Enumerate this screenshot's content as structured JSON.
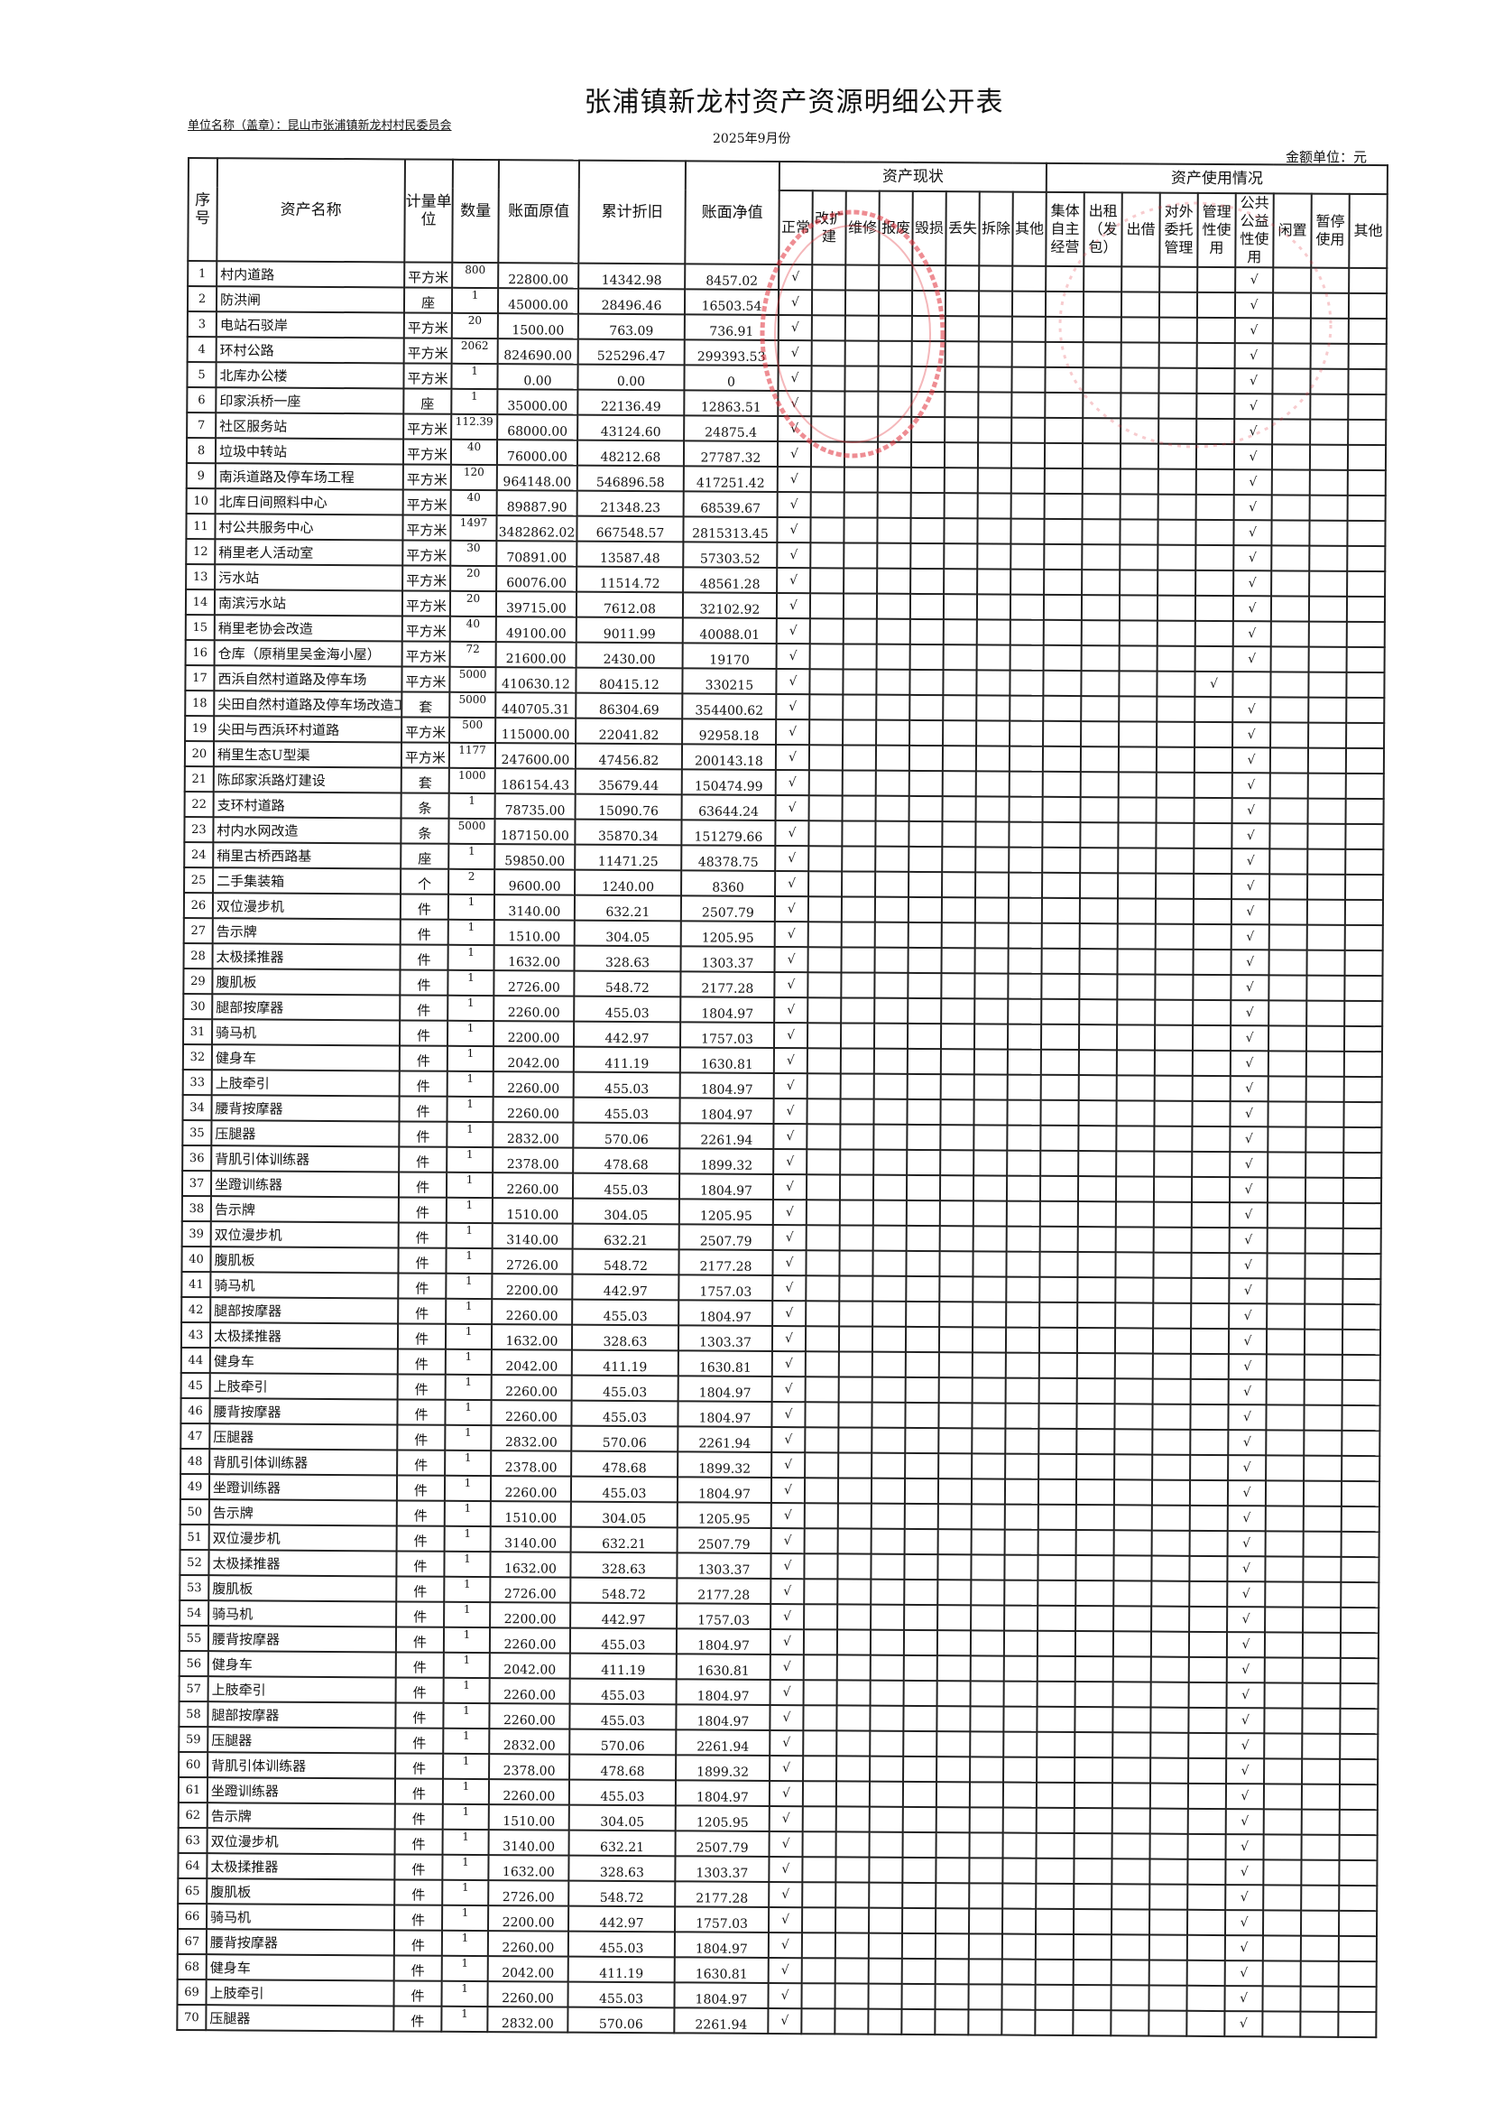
{
  "title": "张浦镇新龙村资产资源明细公开表",
  "unit_name": "单位名称（盖章）：昆山市张浦镇新龙村村民委员会",
  "period": "2025年9月份",
  "amount_unit": "金额单位：元",
  "headers": {
    "no": "序号",
    "name": "资产名称",
    "unit": "计量单位",
    "qty": "数量",
    "original": "账面原值",
    "depreciation": "累计折旧",
    "net": "账面净值",
    "status_group": "资产现状",
    "usage_group": "资产使用情况",
    "status_cols": [
      "正常",
      "改扩建",
      "维修",
      "报废",
      "毁损",
      "丢失",
      "拆除",
      "其他"
    ],
    "usage_cols": [
      "集体自主经营",
      "出租（发包）",
      "出借",
      "对外委托管理",
      "管理性使用",
      "公共公益性使用",
      "闲置",
      "暂停使用",
      "其他"
    ]
  },
  "check_mark": "√",
  "stamp_color": "#e0303a",
  "rows": [
    [
      "1",
      "村内道路",
      "平方米",
      "800",
      "22800.00",
      "14342.98",
      "8457.02",
      "正常",
      "公共公益性使用"
    ],
    [
      "2",
      "防洪闸",
      "座",
      "1",
      "45000.00",
      "28496.46",
      "16503.54",
      "正常",
      "公共公益性使用"
    ],
    [
      "3",
      "电站石驳岸",
      "平方米",
      "20",
      "1500.00",
      "763.09",
      "736.91",
      "正常",
      "公共公益性使用"
    ],
    [
      "4",
      "环村公路",
      "平方米",
      "2062",
      "824690.00",
      "525296.47",
      "299393.53",
      "正常",
      "公共公益性使用"
    ],
    [
      "5",
      "北库办公楼",
      "平方米",
      "1",
      "0.00",
      "0.00",
      "0",
      "正常",
      "公共公益性使用"
    ],
    [
      "6",
      "印家浜桥一座",
      "座",
      "1",
      "35000.00",
      "22136.49",
      "12863.51",
      "正常",
      "公共公益性使用"
    ],
    [
      "7",
      "社区服务站",
      "平方米",
      "112.39",
      "68000.00",
      "43124.60",
      "24875.4",
      "正常",
      "公共公益性使用"
    ],
    [
      "8",
      "垃圾中转站",
      "平方米",
      "40",
      "76000.00",
      "48212.68",
      "27787.32",
      "正常",
      "公共公益性使用"
    ],
    [
      "9",
      "南浜道路及停车场工程",
      "平方米",
      "120",
      "964148.00",
      "546896.58",
      "417251.42",
      "正常",
      "公共公益性使用"
    ],
    [
      "10",
      "北库日间照料中心",
      "平方米",
      "40",
      "89887.90",
      "21348.23",
      "68539.67",
      "正常",
      "公共公益性使用"
    ],
    [
      "11",
      "村公共服务中心",
      "平方米",
      "1497",
      "3482862.02",
      "667548.57",
      "2815313.45",
      "正常",
      "公共公益性使用"
    ],
    [
      "12",
      "稍里老人活动室",
      "平方米",
      "30",
      "70891.00",
      "13587.48",
      "57303.52",
      "正常",
      "公共公益性使用"
    ],
    [
      "13",
      "污水站",
      "平方米",
      "20",
      "60076.00",
      "11514.72",
      "48561.28",
      "正常",
      "公共公益性使用"
    ],
    [
      "14",
      "南滨污水站",
      "平方米",
      "20",
      "39715.00",
      "7612.08",
      "32102.92",
      "正常",
      "公共公益性使用"
    ],
    [
      "15",
      "稍里老协会改造",
      "平方米",
      "40",
      "49100.00",
      "9011.99",
      "40088.01",
      "正常",
      "公共公益性使用"
    ],
    [
      "16",
      "仓库（原稍里吴金海小屋）",
      "平方米",
      "72",
      "21600.00",
      "2430.00",
      "19170",
      "正常",
      "公共公益性使用"
    ],
    [
      "17",
      "西浜自然村道路及停车场",
      "平方米",
      "5000",
      "410630.12",
      "80415.12",
      "330215",
      "正常",
      "管理性使用"
    ],
    [
      "18",
      "尖田自然村道路及停车场改造工",
      "套",
      "5000",
      "440705.31",
      "86304.69",
      "354400.62",
      "正常",
      "公共公益性使用"
    ],
    [
      "19",
      "尖田与西浜环村道路",
      "平方米",
      "500",
      "115000.00",
      "22041.82",
      "92958.18",
      "正常",
      "公共公益性使用"
    ],
    [
      "20",
      "稍里生态U型渠",
      "平方米",
      "1177",
      "247600.00",
      "47456.82",
      "200143.18",
      "正常",
      "公共公益性使用"
    ],
    [
      "21",
      "陈邱家浜路灯建设",
      "套",
      "1000",
      "186154.43",
      "35679.44",
      "150474.99",
      "正常",
      "公共公益性使用"
    ],
    [
      "22",
      "支环村道路",
      "条",
      "1",
      "78735.00",
      "15090.76",
      "63644.24",
      "正常",
      "公共公益性使用"
    ],
    [
      "23",
      "村内水网改造",
      "条",
      "5000",
      "187150.00",
      "35870.34",
      "151279.66",
      "正常",
      "公共公益性使用"
    ],
    [
      "24",
      "稍里古桥西路基",
      "座",
      "1",
      "59850.00",
      "11471.25",
      "48378.75",
      "正常",
      "公共公益性使用"
    ],
    [
      "25",
      "二手集装箱",
      "个",
      "2",
      "9600.00",
      "1240.00",
      "8360",
      "正常",
      "公共公益性使用"
    ],
    [
      "26",
      "双位漫步机",
      "件",
      "1",
      "3140.00",
      "632.21",
      "2507.79",
      "正常",
      "公共公益性使用"
    ],
    [
      "27",
      "告示牌",
      "件",
      "1",
      "1510.00",
      "304.05",
      "1205.95",
      "正常",
      "公共公益性使用"
    ],
    [
      "28",
      "太极揉推器",
      "件",
      "1",
      "1632.00",
      "328.63",
      "1303.37",
      "正常",
      "公共公益性使用"
    ],
    [
      "29",
      "腹肌板",
      "件",
      "1",
      "2726.00",
      "548.72",
      "2177.28",
      "正常",
      "公共公益性使用"
    ],
    [
      "30",
      "腿部按摩器",
      "件",
      "1",
      "2260.00",
      "455.03",
      "1804.97",
      "正常",
      "公共公益性使用"
    ],
    [
      "31",
      "骑马机",
      "件",
      "1",
      "2200.00",
      "442.97",
      "1757.03",
      "正常",
      "公共公益性使用"
    ],
    [
      "32",
      "健身车",
      "件",
      "1",
      "2042.00",
      "411.19",
      "1630.81",
      "正常",
      "公共公益性使用"
    ],
    [
      "33",
      "上肢牵引",
      "件",
      "1",
      "2260.00",
      "455.03",
      "1804.97",
      "正常",
      "公共公益性使用"
    ],
    [
      "34",
      "腰背按摩器",
      "件",
      "1",
      "2260.00",
      "455.03",
      "1804.97",
      "正常",
      "公共公益性使用"
    ],
    [
      "35",
      "压腿器",
      "件",
      "1",
      "2832.00",
      "570.06",
      "2261.94",
      "正常",
      "公共公益性使用"
    ],
    [
      "36",
      "背肌引体训练器",
      "件",
      "1",
      "2378.00",
      "478.68",
      "1899.32",
      "正常",
      "公共公益性使用"
    ],
    [
      "37",
      "坐蹬训练器",
      "件",
      "1",
      "2260.00",
      "455.03",
      "1804.97",
      "正常",
      "公共公益性使用"
    ],
    [
      "38",
      "告示牌",
      "件",
      "1",
      "1510.00",
      "304.05",
      "1205.95",
      "正常",
      "公共公益性使用"
    ],
    [
      "39",
      "双位漫步机",
      "件",
      "1",
      "3140.00",
      "632.21",
      "2507.79",
      "正常",
      "公共公益性使用"
    ],
    [
      "40",
      "腹肌板",
      "件",
      "1",
      "2726.00",
      "548.72",
      "2177.28",
      "正常",
      "公共公益性使用"
    ],
    [
      "41",
      "骑马机",
      "件",
      "1",
      "2200.00",
      "442.97",
      "1757.03",
      "正常",
      "公共公益性使用"
    ],
    [
      "42",
      "腿部按摩器",
      "件",
      "1",
      "2260.00",
      "455.03",
      "1804.97",
      "正常",
      "公共公益性使用"
    ],
    [
      "43",
      "太极揉推器",
      "件",
      "1",
      "1632.00",
      "328.63",
      "1303.37",
      "正常",
      "公共公益性使用"
    ],
    [
      "44",
      "健身车",
      "件",
      "1",
      "2042.00",
      "411.19",
      "1630.81",
      "正常",
      "公共公益性使用"
    ],
    [
      "45",
      "上肢牵引",
      "件",
      "1",
      "2260.00",
      "455.03",
      "1804.97",
      "正常",
      "公共公益性使用"
    ],
    [
      "46",
      "腰背按摩器",
      "件",
      "1",
      "2260.00",
      "455.03",
      "1804.97",
      "正常",
      "公共公益性使用"
    ],
    [
      "47",
      "压腿器",
      "件",
      "1",
      "2832.00",
      "570.06",
      "2261.94",
      "正常",
      "公共公益性使用"
    ],
    [
      "48",
      "背肌引体训练器",
      "件",
      "1",
      "2378.00",
      "478.68",
      "1899.32",
      "正常",
      "公共公益性使用"
    ],
    [
      "49",
      "坐蹬训练器",
      "件",
      "1",
      "2260.00",
      "455.03",
      "1804.97",
      "正常",
      "公共公益性使用"
    ],
    [
      "50",
      "告示牌",
      "件",
      "1",
      "1510.00",
      "304.05",
      "1205.95",
      "正常",
      "公共公益性使用"
    ],
    [
      "51",
      "双位漫步机",
      "件",
      "1",
      "3140.00",
      "632.21",
      "2507.79",
      "正常",
      "公共公益性使用"
    ],
    [
      "52",
      "太极揉推器",
      "件",
      "1",
      "1632.00",
      "328.63",
      "1303.37",
      "正常",
      "公共公益性使用"
    ],
    [
      "53",
      "腹肌板",
      "件",
      "1",
      "2726.00",
      "548.72",
      "2177.28",
      "正常",
      "公共公益性使用"
    ],
    [
      "54",
      "骑马机",
      "件",
      "1",
      "2200.00",
      "442.97",
      "1757.03",
      "正常",
      "公共公益性使用"
    ],
    [
      "55",
      "腰背按摩器",
      "件",
      "1",
      "2260.00",
      "455.03",
      "1804.97",
      "正常",
      "公共公益性使用"
    ],
    [
      "56",
      "健身车",
      "件",
      "1",
      "2042.00",
      "411.19",
      "1630.81",
      "正常",
      "公共公益性使用"
    ],
    [
      "57",
      "上肢牵引",
      "件",
      "1",
      "2260.00",
      "455.03",
      "1804.97",
      "正常",
      "公共公益性使用"
    ],
    [
      "58",
      "腿部按摩器",
      "件",
      "1",
      "2260.00",
      "455.03",
      "1804.97",
      "正常",
      "公共公益性使用"
    ],
    [
      "59",
      "压腿器",
      "件",
      "1",
      "2832.00",
      "570.06",
      "2261.94",
      "正常",
      "公共公益性使用"
    ],
    [
      "60",
      "背肌引体训练器",
      "件",
      "1",
      "2378.00",
      "478.68",
      "1899.32",
      "正常",
      "公共公益性使用"
    ],
    [
      "61",
      "坐蹬训练器",
      "件",
      "1",
      "2260.00",
      "455.03",
      "1804.97",
      "正常",
      "公共公益性使用"
    ],
    [
      "62",
      "告示牌",
      "件",
      "1",
      "1510.00",
      "304.05",
      "1205.95",
      "正常",
      "公共公益性使用"
    ],
    [
      "63",
      "双位漫步机",
      "件",
      "1",
      "3140.00",
      "632.21",
      "2507.79",
      "正常",
      "公共公益性使用"
    ],
    [
      "64",
      "太极揉推器",
      "件",
      "1",
      "1632.00",
      "328.63",
      "1303.37",
      "正常",
      "公共公益性使用"
    ],
    [
      "65",
      "腹肌板",
      "件",
      "1",
      "2726.00",
      "548.72",
      "2177.28",
      "正常",
      "公共公益性使用"
    ],
    [
      "66",
      "骑马机",
      "件",
      "1",
      "2200.00",
      "442.97",
      "1757.03",
      "正常",
      "公共公益性使用"
    ],
    [
      "67",
      "腰背按摩器",
      "件",
      "1",
      "2260.00",
      "455.03",
      "1804.97",
      "正常",
      "公共公益性使用"
    ],
    [
      "68",
      "健身车",
      "件",
      "1",
      "2042.00",
      "411.19",
      "1630.81",
      "正常",
      "公共公益性使用"
    ],
    [
      "69",
      "上肢牵引",
      "件",
      "1",
      "2260.00",
      "455.03",
      "1804.97",
      "正常",
      "公共公益性使用"
    ],
    [
      "70",
      "压腿器",
      "件",
      "1",
      "2832.00",
      "570.06",
      "2261.94",
      "正常",
      "公共公益性使用"
    ]
  ]
}
